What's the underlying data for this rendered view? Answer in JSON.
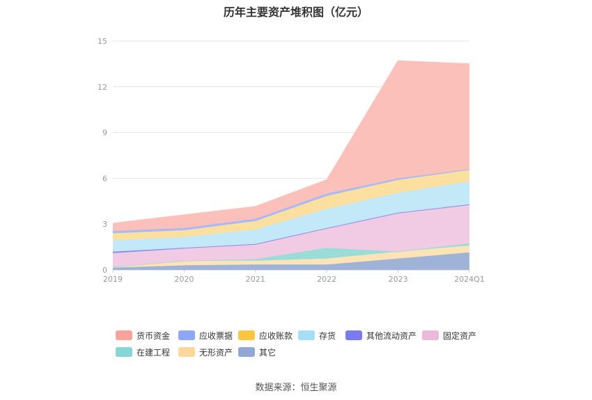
{
  "chart_data": {
    "type": "area",
    "stacked": true,
    "title": "历年主要资产堆积图（亿元）",
    "categories": [
      "2019",
      "2020",
      "2021",
      "2022",
      "2023",
      "2024Q1"
    ],
    "ylim": [
      0,
      15
    ],
    "yticks": [
      "0",
      "3",
      "6",
      "9",
      "12",
      "15"
    ],
    "grid": true,
    "legend_position": "bottom",
    "series": [
      {
        "name": "其它",
        "color": "#9fb3d9",
        "values": [
          0.15,
          0.3,
          0.35,
          0.35,
          0.75,
          1.15
        ]
      },
      {
        "name": "无形资产",
        "color": "#fde3b5",
        "values": [
          0.05,
          0.3,
          0.25,
          0.4,
          0.45,
          0.45
        ]
      },
      {
        "name": "在建工程",
        "color": "#9adcd8",
        "values": [
          0.0,
          0.0,
          0.1,
          0.7,
          0.0,
          0.15
        ]
      },
      {
        "name": "固定资产",
        "color": "#f0cbe3",
        "values": [
          0.9,
          0.8,
          0.95,
          1.25,
          2.5,
          2.5
        ]
      },
      {
        "name": "其他流动资产",
        "color": "#8c8cf2",
        "values": [
          0.1,
          0.05,
          0.05,
          0.05,
          0.05,
          0.05
        ]
      },
      {
        "name": "存货",
        "color": "#c3e8f8",
        "values": [
          0.75,
          0.7,
          0.95,
          1.25,
          1.3,
          1.5
        ]
      },
      {
        "name": "应收账款",
        "color": "#fde0a0",
        "values": [
          0.45,
          0.45,
          0.55,
          0.85,
          0.85,
          0.75
        ]
      },
      {
        "name": "应收票据",
        "color": "#a7baf7",
        "values": [
          0.15,
          0.15,
          0.15,
          0.15,
          0.1,
          0.05
        ]
      },
      {
        "name": "货币资金",
        "color": "#fcc0ba",
        "values": [
          0.5,
          0.85,
          0.8,
          0.9,
          7.7,
          6.9
        ]
      }
    ]
  },
  "legend": [
    {
      "name": "货币资金",
      "color": "#fba39a"
    },
    {
      "name": "应收票据",
      "color": "#8ea6f5"
    },
    {
      "name": "应收账款",
      "color": "#fcc642"
    },
    {
      "name": "存货",
      "color": "#a5def5"
    },
    {
      "name": "其他流动资产",
      "color": "#7b7bf0"
    },
    {
      "name": "固定资产",
      "color": "#ebb9d9"
    },
    {
      "name": "在建工程",
      "color": "#86d6d3"
    },
    {
      "name": "无形资产",
      "color": "#fdd69a"
    },
    {
      "name": "其它",
      "color": "#91a8d6"
    }
  ],
  "source": "数据来源：恒生聚源"
}
